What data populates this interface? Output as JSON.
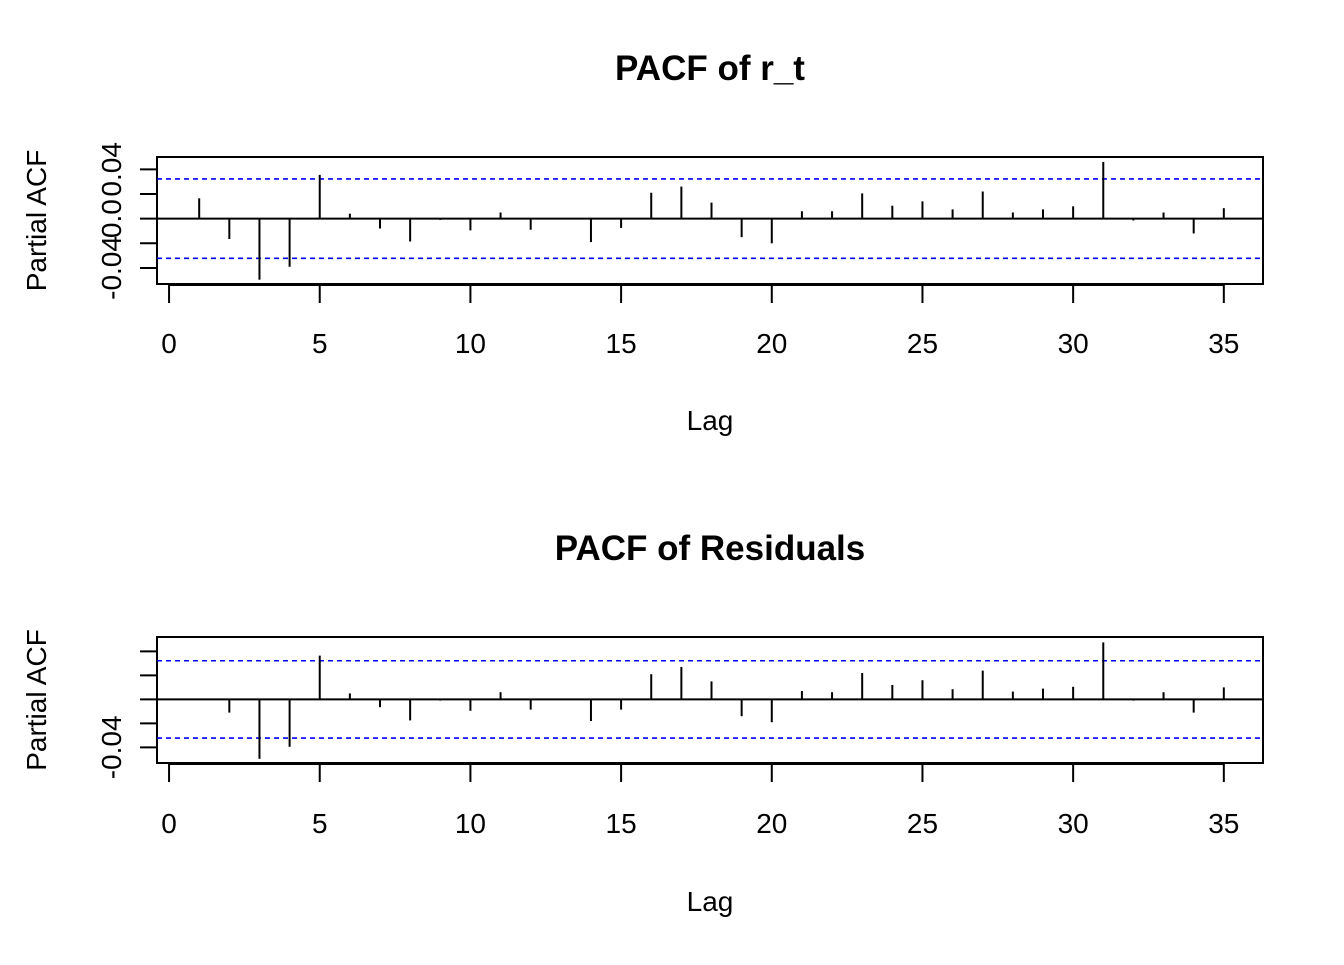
{
  "chart_data": [
    {
      "type": "bar",
      "title": "PACF of r_t",
      "xlabel": "Lag",
      "ylabel": "Partial ACF",
      "xlim": [
        -0.4,
        36.3
      ],
      "ylim": [
        -0.053,
        0.05
      ],
      "x_ticks": [
        "0",
        "5",
        "10",
        "15",
        "20",
        "25",
        "30",
        "35"
      ],
      "y_ticks": [
        {
          "value": -0.04,
          "label": "-0.04"
        },
        {
          "value": -0.02,
          "label": ""
        },
        {
          "value": 0.0,
          "label": "0.0"
        },
        {
          "value": 0.02,
          "label": ""
        },
        {
          "value": 0.04,
          "label": "0.04"
        }
      ],
      "confidence_bound": 0.0322,
      "confidence_color": "#0000ff",
      "lags": [
        1,
        2,
        3,
        4,
        5,
        6,
        7,
        8,
        9,
        10,
        11,
        12,
        13,
        14,
        15,
        16,
        17,
        18,
        19,
        20,
        21,
        22,
        23,
        24,
        25,
        26,
        27,
        28,
        29,
        30,
        31,
        32,
        33,
        34,
        35
      ],
      "values": [
        0.0165,
        -0.0165,
        -0.0495,
        -0.039,
        0.0355,
        0.004,
        -0.008,
        -0.0185,
        -0.001,
        -0.0095,
        0.005,
        -0.009,
        0.0,
        -0.019,
        -0.0075,
        0.021,
        0.026,
        0.013,
        -0.015,
        -0.02,
        0.006,
        0.006,
        0.0205,
        0.0105,
        0.014,
        0.0075,
        0.022,
        0.005,
        0.0075,
        0.01,
        0.046,
        -0.0015,
        0.005,
        -0.012,
        0.0085
      ],
      "grid": false
    },
    {
      "type": "bar",
      "title": "PACF of Residuals",
      "xlabel": "Lag",
      "ylabel": "Partial ACF",
      "xlim": [
        -0.4,
        36.3
      ],
      "ylim": [
        -0.053,
        0.052
      ],
      "x_ticks": [
        "0",
        "5",
        "10",
        "15",
        "20",
        "25",
        "30",
        "35"
      ],
      "y_ticks": [
        {
          "value": -0.04,
          "label": "-0.04"
        },
        {
          "value": -0.02,
          "label": ""
        },
        {
          "value": 0.0,
          "label": ""
        },
        {
          "value": 0.02,
          "label": ""
        },
        {
          "value": 0.04,
          "label": ""
        }
      ],
      "confidence_bound": 0.0322,
      "confidence_color": "#0000ff",
      "lags": [
        1,
        2,
        3,
        4,
        5,
        6,
        7,
        8,
        9,
        10,
        11,
        12,
        13,
        14,
        15,
        16,
        17,
        18,
        19,
        20,
        21,
        22,
        23,
        24,
        25,
        26,
        27,
        28,
        29,
        30,
        31,
        32,
        33,
        34,
        35
      ],
      "values": [
        0.0,
        -0.011,
        -0.0495,
        -0.0395,
        0.0365,
        0.005,
        -0.0065,
        -0.0175,
        -0.001,
        -0.0095,
        0.006,
        -0.0085,
        0.0,
        -0.018,
        -0.0085,
        0.021,
        0.027,
        0.015,
        -0.014,
        -0.019,
        0.007,
        0.006,
        0.022,
        0.012,
        0.016,
        0.0085,
        0.024,
        0.0065,
        0.009,
        0.0105,
        0.0475,
        -0.001,
        0.006,
        -0.011,
        0.01
      ],
      "grid": false
    }
  ]
}
